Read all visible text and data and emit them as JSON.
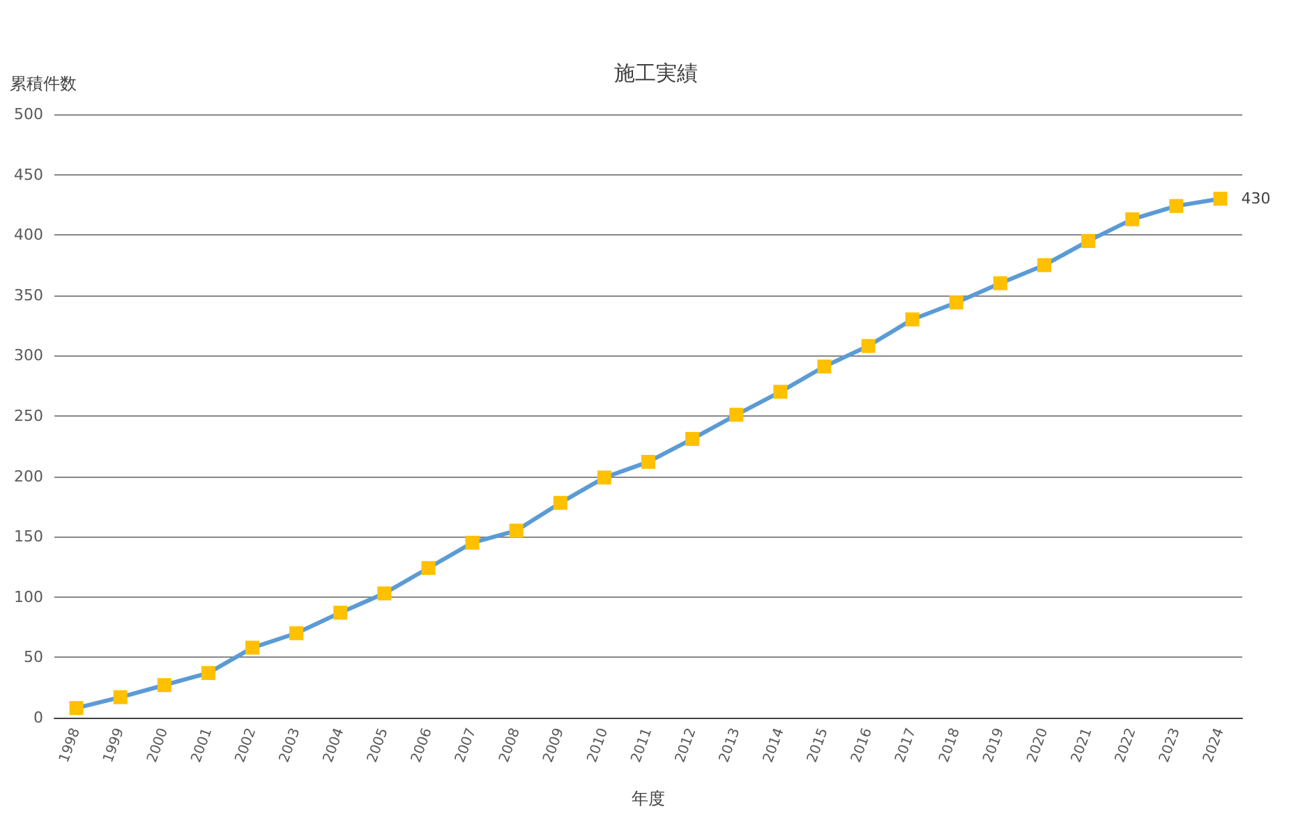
{
  "chart_data": {
    "type": "line",
    "title": "施工実績",
    "xlabel": "年度",
    "ylabel": "累積件数",
    "categories": [
      "1998",
      "1999",
      "2000",
      "2001",
      "2002",
      "2003",
      "2004",
      "2005",
      "2006",
      "2007",
      "2008",
      "2009",
      "2010",
      "2011",
      "2012",
      "2013",
      "2014",
      "2015",
      "2016",
      "2017",
      "2018",
      "2019",
      "2020",
      "2021",
      "2022",
      "2023",
      "2024"
    ],
    "series": [
      {
        "color": "#5b9bd5",
        "colors": [
          "#ffc000",
          "#ffc000",
          "#ffc000",
          "#ffc000",
          "#ffc000",
          "#ffc000",
          "#ffc000",
          "#ffc000",
          "#ffc000",
          "#ffc000",
          "#ffc000",
          "#ffc000",
          "#ffc000",
          "#ffc000",
          "#ffc000",
          "#ffc000",
          "#ffc000",
          "#ffc000",
          "#ffc000",
          "#ffc000",
          "#ffc000",
          "#ffc000",
          "#ffc000",
          "#ffc000",
          "#ffc000",
          "#ffc000",
          "#ffc000"
        ],
        "values": [
          8,
          17,
          27,
          37,
          58,
          70,
          87,
          103,
          124,
          145,
          155,
          178,
          199,
          212,
          231,
          251,
          270,
          291,
          308,
          330,
          344,
          360,
          375,
          395,
          413,
          424,
          430
        ],
        "value_labels": [
          null,
          null,
          null,
          null,
          null,
          null,
          null,
          null,
          null,
          null,
          null,
          null,
          null,
          null,
          null,
          null,
          null,
          null,
          null,
          null,
          null,
          null,
          null,
          null,
          null,
          null,
          "430"
        ]
      }
    ],
    "ylim": [
      0,
      500
    ],
    "yticks": [
      0,
      50,
      100,
      150,
      200,
      250,
      300,
      350,
      400,
      450,
      500
    ],
    "grid": "y",
    "marker": "square",
    "line_style": "solid"
  }
}
